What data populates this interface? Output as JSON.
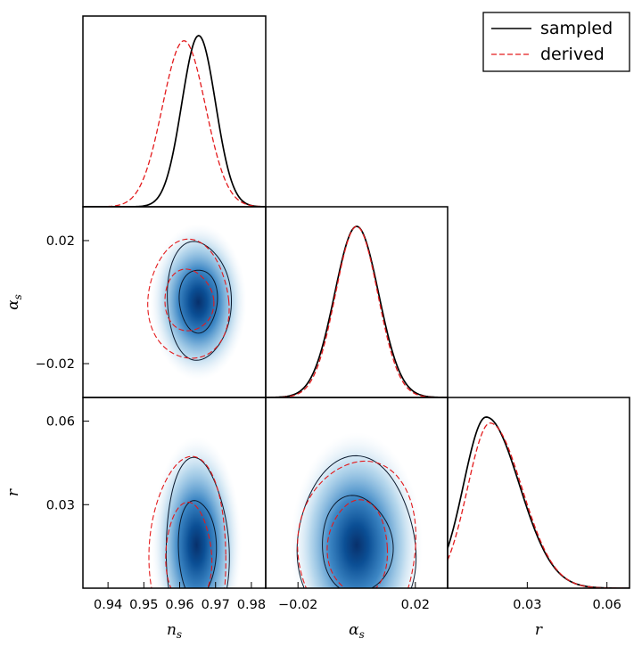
{
  "chart_data": {
    "type": "triangle-plot",
    "legend": {
      "location": "top-right",
      "entries": [
        {
          "label": "sampled",
          "style": "solid",
          "color": "#000000"
        },
        {
          "label": "derived",
          "style": "dashed",
          "color": "#e31a1c"
        }
      ]
    },
    "parameters": [
      {
        "name": "n_s",
        "label_main": "n",
        "label_sub": "s",
        "range": [
          0.933,
          0.984
        ],
        "ticks": [
          {
            "value": 0.94,
            "label": "0.94"
          },
          {
            "value": 0.95,
            "label": "0.95"
          },
          {
            "value": 0.96,
            "label": "0.96"
          },
          {
            "value": 0.97,
            "label": "0.97"
          },
          {
            "value": 0.98,
            "label": "0.98"
          }
        ]
      },
      {
        "name": "alpha_s",
        "label_main": "α",
        "label_sub": "s",
        "range": [
          -0.031,
          0.031
        ],
        "ticks": [
          {
            "value": -0.02,
            "label": "−0.02"
          },
          {
            "value": 0.02,
            "label": "0.02"
          }
        ]
      },
      {
        "name": "r",
        "label_main": "r",
        "label_sub": "",
        "range": [
          0.0,
          0.0685
        ],
        "ticks": [
          {
            "value": 0.03,
            "label": "0.03"
          },
          {
            "value": 0.06,
            "label": "0.06"
          }
        ]
      }
    ],
    "marginals": [
      {
        "param": "n_s",
        "sampled": {
          "type": "gaussian",
          "mean": 0.9653,
          "sd": 0.0047
        },
        "derived": {
          "type": "gaussian",
          "mean": 0.9612,
          "sd": 0.006,
          "peak": 0.97
        }
      },
      {
        "param": "alpha_s",
        "sampled": {
          "type": "gaussian",
          "mean": 0.0,
          "sd": 0.0075
        },
        "derived": {
          "type": "gaussian",
          "mean": 0.0,
          "sd": 0.0072
        }
      },
      {
        "param": "r",
        "sampled": {
          "type": "skewed",
          "mode": 0.0145,
          "sd_left": 0.0085,
          "sd_right": 0.0125
        },
        "derived": {
          "type": "skewed",
          "mode": 0.016,
          "sd_left": 0.0085,
          "sd_right": 0.012,
          "peak": 0.965
        }
      }
    ],
    "joint_2d": [
      {
        "x": "n_s",
        "y": "alpha_s",
        "density": {
          "center": [
            0.9652,
            0.0
          ],
          "sd": [
            0.0045,
            0.0085
          ]
        },
        "sampled": {
          "center": [
            0.9652,
            0.0005
          ],
          "levels": [
            {
              "sd": [
                0.0052,
                0.0105
              ]
            },
            {
              "sd": [
                0.0088,
                0.0195
              ]
            }
          ]
        },
        "derived": {
          "center": [
            0.9625,
            0.0005
          ],
          "levels": [
            {
              "sd": [
                0.0068,
                0.01
              ]
            },
            {
              "sd": [
                0.0115,
                0.019
              ]
            }
          ]
        }
      },
      {
        "x": "n_s",
        "y": "r",
        "density": {
          "center": [
            0.9647,
            0.0155
          ],
          "sd": [
            0.0042,
            0.013
          ]
        },
        "sampled": {
          "center": [
            0.9648,
            0.014
          ],
          "levels": [
            {
              "sd": [
                0.0052,
                0.018
              ]
            },
            {
              "sd": [
                0.0088,
                0.032
              ]
            }
          ]
        },
        "derived": {
          "center": [
            0.9625,
            0.012
          ],
          "levels": [
            {
              "sd": [
                0.0065,
                0.018
              ]
            },
            {
              "sd": [
                0.011,
                0.034
              ]
            }
          ]
        }
      },
      {
        "x": "alpha_s",
        "y": "r",
        "density": {
          "center": [
            0.0,
            0.0155
          ],
          "sd": [
            0.0075,
            0.0135
          ]
        },
        "sampled": {
          "center": [
            0.0,
            0.0155
          ],
          "levels": [
            {
              "sd": [
                0.012,
                0.0175
              ]
            },
            {
              "sd": [
                0.0205,
                0.0305
              ]
            }
          ]
        },
        "derived": {
          "center": [
            0.0005,
            0.0145
          ],
          "levels": [
            {
              "sd": [
                0.0105,
                0.0165
              ]
            },
            {
              "sd": [
                0.0205,
                0.031
              ]
            }
          ]
        }
      }
    ]
  }
}
